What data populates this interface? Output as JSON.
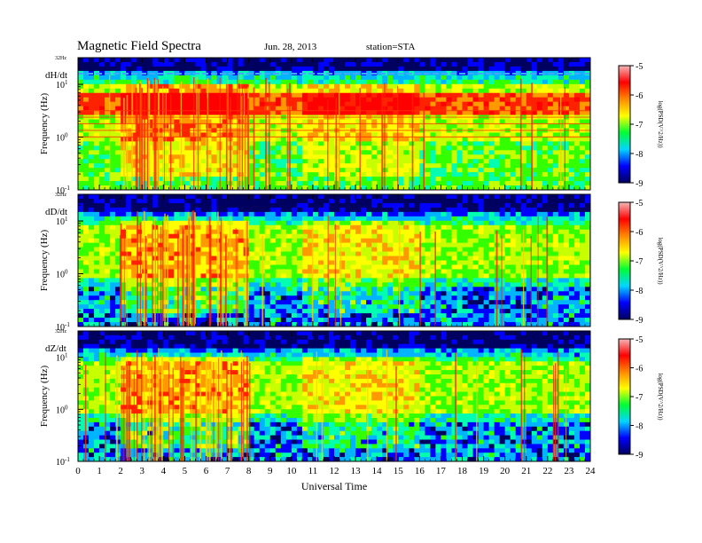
{
  "header": {
    "title": "Magnetic  Field  Spectra",
    "date": "Jun. 28, 2013",
    "station": "station=STA"
  },
  "chart_data": {
    "type": "heatmap",
    "xlabel": "Universal Time",
    "xlim": [
      0,
      24
    ],
    "x_ticks": [
      "0",
      "1",
      "2",
      "3",
      "4",
      "5",
      "6",
      "7",
      "8",
      "9",
      "10",
      "11",
      "12",
      "13",
      "14",
      "15",
      "16",
      "17",
      "18",
      "19",
      "20",
      "21",
      "22",
      "23",
      "24"
    ],
    "ylabel": "Frequency  (Hz)",
    "y_scale": "log",
    "ylim": [
      0.1,
      32
    ],
    "y_top_label": "32Hz",
    "y_ticks": [
      {
        "base": "10",
        "exp": "1"
      },
      {
        "base": "10",
        "exp": "0"
      },
      {
        "base": "10",
        "exp": "-1"
      }
    ],
    "colorbar": {
      "label": "log(PSD(V^2/Hz))",
      "range": [
        -9,
        -5
      ],
      "ticks": [
        "-5",
        "-6",
        "-7",
        "-8",
        "-9"
      ],
      "colors": [
        "#f4b6b6",
        "#ff0000",
        "#ff8800",
        "#ffff00",
        "#00ff33",
        "#00d6ff",
        "#0000ff",
        "#000060"
      ]
    },
    "panels": [
      {
        "component": "dH/dt"
      },
      {
        "component": "dD/dt"
      },
      {
        "component": "dZ/dt"
      }
    ]
  }
}
